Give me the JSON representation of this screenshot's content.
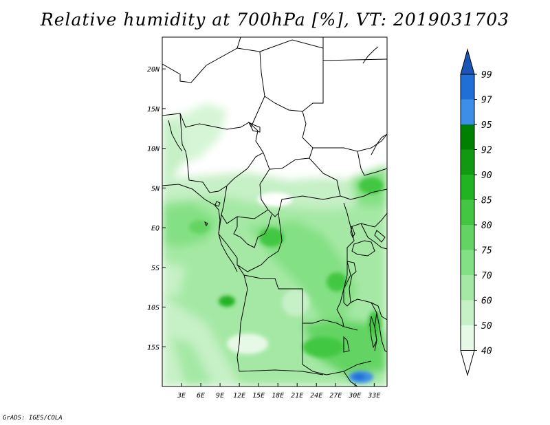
{
  "title": "Relative humidity at 700hPa [%], VT: 2019031703",
  "credit": "GrADS: IGES/COLA",
  "map": {
    "lon_labels": [
      "3E",
      "6E",
      "9E",
      "12E",
      "15E",
      "18E",
      "21E",
      "24E",
      "27E",
      "30E",
      "33E"
    ],
    "lat_labels": [
      "20N",
      "15N",
      "10N",
      "5N",
      "EQ",
      "5S",
      "10S",
      "15S"
    ],
    "lon_range": [
      0,
      35
    ],
    "lat_range": [
      -20,
      24
    ]
  },
  "colorbar": {
    "levels": [
      "40",
      "50",
      "60",
      "70",
      "75",
      "80",
      "85",
      "90",
      "92",
      "95",
      "97",
      "99"
    ],
    "colors": [
      "#ffffff",
      "#e6f9e6",
      "#c6f0c6",
      "#a5e8a5",
      "#84e084",
      "#63d463",
      "#43c743",
      "#22b322",
      "#119a11",
      "#008000",
      "#3c8ee6",
      "#1f6fd6",
      "#1a56b8"
    ]
  }
}
